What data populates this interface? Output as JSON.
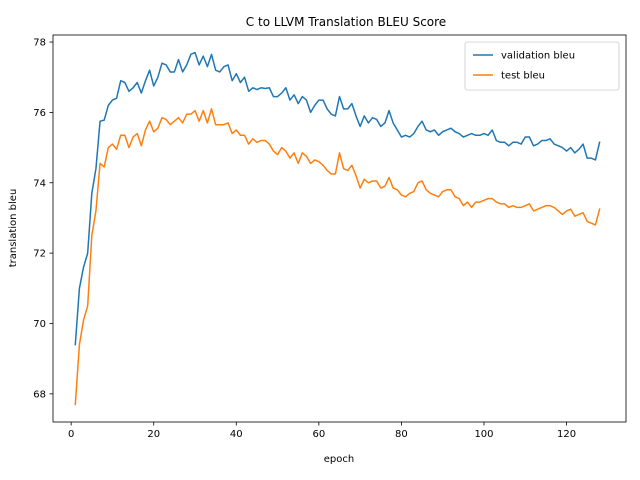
{
  "chart_data": {
    "type": "line",
    "title": "C to LLVM Translation BLEU Score",
    "xlabel": "epoch",
    "ylabel": "translation bleu",
    "xlim": [
      -4.4,
      134.4
    ],
    "ylim": [
      67.2,
      78.2
    ],
    "xticks": [
      0,
      20,
      40,
      60,
      80,
      100,
      120
    ],
    "yticks": [
      68,
      70,
      72,
      74,
      76,
      78
    ],
    "grid": false,
    "legend_position": "top-right",
    "x_start": 1,
    "x_step": 1,
    "series": [
      {
        "name": "validation bleu",
        "color": "#1f77b4",
        "values": [
          69.4,
          71.0,
          71.6,
          72.0,
          73.7,
          74.4,
          75.75,
          75.78,
          76.2,
          76.35,
          76.4,
          76.9,
          76.85,
          76.6,
          76.7,
          76.85,
          76.55,
          76.9,
          77.2,
          76.75,
          77.0,
          77.4,
          77.35,
          77.15,
          77.15,
          77.5,
          77.15,
          77.35,
          77.65,
          77.7,
          77.35,
          77.6,
          77.3,
          77.65,
          77.2,
          77.15,
          77.3,
          77.35,
          76.9,
          77.1,
          76.85,
          77.0,
          76.6,
          76.7,
          76.65,
          76.7,
          76.68,
          76.7,
          76.45,
          76.45,
          76.55,
          76.7,
          76.35,
          76.5,
          76.25,
          76.45,
          76.35,
          76.0,
          76.2,
          76.35,
          76.35,
          76.1,
          75.95,
          75.9,
          76.45,
          76.1,
          76.1,
          76.25,
          75.9,
          75.6,
          75.9,
          75.7,
          75.85,
          75.8,
          75.6,
          75.7,
          76.05,
          75.7,
          75.5,
          75.3,
          75.35,
          75.3,
          75.4,
          75.6,
          75.75,
          75.5,
          75.45,
          75.5,
          75.35,
          75.45,
          75.5,
          75.55,
          75.45,
          75.4,
          75.3,
          75.35,
          75.4,
          75.35,
          75.35,
          75.4,
          75.35,
          75.5,
          75.2,
          75.15,
          75.15,
          75.05,
          75.15,
          75.15,
          75.1,
          75.3,
          75.3,
          75.05,
          75.1,
          75.2,
          75.2,
          75.25,
          75.1,
          75.05,
          75.0,
          74.9,
          75.0,
          74.85,
          74.95,
          75.1,
          74.7,
          74.7,
          74.65,
          75.15
        ]
      },
      {
        "name": "test bleu",
        "color": "#ff7f0e",
        "values": [
          67.7,
          69.4,
          70.1,
          70.5,
          72.5,
          73.2,
          74.55,
          74.45,
          75.0,
          75.1,
          74.95,
          75.35,
          75.35,
          75.0,
          75.3,
          75.4,
          75.05,
          75.5,
          75.75,
          75.45,
          75.55,
          75.85,
          75.8,
          75.65,
          75.75,
          75.85,
          75.7,
          75.95,
          75.95,
          76.05,
          75.75,
          76.05,
          75.7,
          76.1,
          75.65,
          75.65,
          75.65,
          75.7,
          75.4,
          75.5,
          75.35,
          75.35,
          75.1,
          75.25,
          75.15,
          75.2,
          75.2,
          75.1,
          74.9,
          74.8,
          75.0,
          74.9,
          74.7,
          74.85,
          74.55,
          74.85,
          74.75,
          74.55,
          74.65,
          74.6,
          74.5,
          74.35,
          74.25,
          74.25,
          74.85,
          74.4,
          74.35,
          74.5,
          74.2,
          73.85,
          74.1,
          74.0,
          74.05,
          74.05,
          73.85,
          73.9,
          74.15,
          73.85,
          73.8,
          73.65,
          73.6,
          73.7,
          73.75,
          74.0,
          74.05,
          73.8,
          73.7,
          73.65,
          73.6,
          73.75,
          73.8,
          73.8,
          73.6,
          73.55,
          73.35,
          73.45,
          73.3,
          73.45,
          73.45,
          73.5,
          73.55,
          73.55,
          73.45,
          73.4,
          73.4,
          73.3,
          73.35,
          73.3,
          73.3,
          73.35,
          73.4,
          73.2,
          73.25,
          73.3,
          73.35,
          73.35,
          73.3,
          73.2,
          73.1,
          73.2,
          73.25,
          73.05,
          73.1,
          73.15,
          72.9,
          72.85,
          72.8,
          73.25
        ]
      }
    ]
  }
}
